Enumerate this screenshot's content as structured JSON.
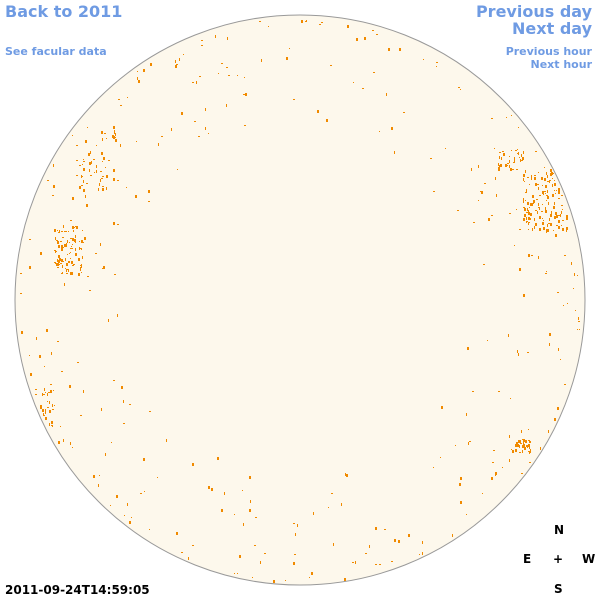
{
  "links": {
    "back": "Back to 2011",
    "facular": "See facular data",
    "previous_day": "Previous day",
    "next_day": "Next day",
    "previous_hour": "Previous hour",
    "next_hour": "Next hour"
  },
  "timestamp": "2011-09-24T14:59:05",
  "compass": {
    "north": "N",
    "east": "E",
    "center": "+",
    "west": "W",
    "south": "S"
  }
}
